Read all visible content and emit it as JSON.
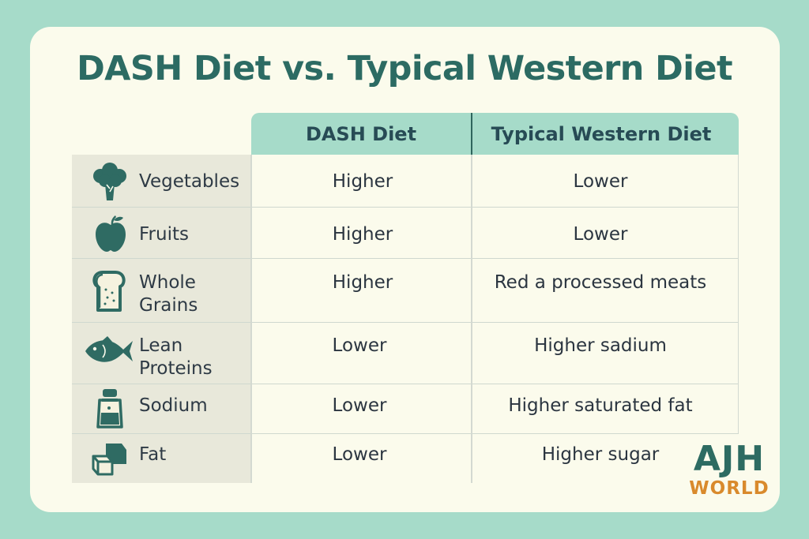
{
  "title": "DASH Diet vs. Typical Western Diet",
  "columns": {
    "dash": "DASH Diet",
    "western": "Typical Western Diet"
  },
  "rows": [
    {
      "label_line1": "Vegetables",
      "label_line2": "",
      "icon": "broccoli-icon",
      "dash": "Higher",
      "western": "Lower"
    },
    {
      "label_line1": "Fruits",
      "label_line2": "",
      "icon": "apple-icon",
      "dash": "Higher",
      "western": "Lower"
    },
    {
      "label_line1": "Whole",
      "label_line2": "Grains",
      "icon": "bread-icon",
      "dash": "Higher",
      "western": "Red a processed meats"
    },
    {
      "label_line1": "Lean",
      "label_line2": "Proteins",
      "icon": "fish-icon",
      "dash": "Lower",
      "western": "Higher sadium"
    },
    {
      "label_line1": "Sodium",
      "label_line2": "",
      "icon": "salt-shaker-icon",
      "dash": "Lower",
      "western": "Higher saturated fat"
    },
    {
      "label_line1": "Fat",
      "label_line2": "",
      "icon": "butter-cube-icon",
      "dash": "Lower",
      "western": "Higher sugar"
    }
  ],
  "logo": {
    "line1": "AJH",
    "line2": "WORLD"
  },
  "colors": {
    "background": "#a6dbc9",
    "card": "#fbfbec",
    "title": "#2c6b63",
    "header_band": "#a6dbc9",
    "label_column": "#e8e8da",
    "icon": "#2f6b63",
    "logo_primary": "#2d6b62",
    "logo_accent": "#d98a2c"
  }
}
